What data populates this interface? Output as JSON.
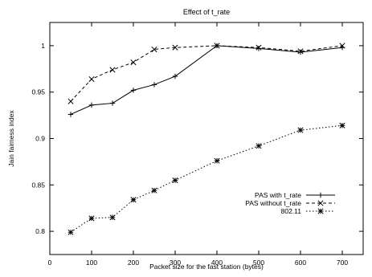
{
  "chart_data": {
    "type": "line",
    "title": "Effect of t_rate",
    "xlabel": "Packet size for the fast station (bytes)",
    "ylabel": "Jain fairness index",
    "xlim": [
      0,
      750
    ],
    "ylim": [
      0.775,
      1.025
    ],
    "xticks": [
      0,
      100,
      200,
      300,
      400,
      500,
      600,
      700
    ],
    "yticks": [
      0.8,
      0.85,
      0.9,
      0.95,
      1
    ],
    "xtick_labels": [
      "0",
      "100",
      "200",
      "300",
      "400",
      "500",
      "600",
      "700"
    ],
    "ytick_labels": [
      "0.8",
      "0.85",
      "0.9",
      "0.95",
      "1"
    ],
    "grid": false,
    "legend_position": "right",
    "x": [
      50,
      100,
      150,
      200,
      250,
      300,
      400,
      500,
      600,
      700
    ],
    "series": [
      {
        "name": "PAS with t_rate",
        "values": [
          0.926,
          0.936,
          0.938,
          0.952,
          0.958,
          0.967,
          1.0,
          0.997,
          0.993,
          0.998
        ],
        "line_style": "solid",
        "marker": "plus",
        "color": "#000000"
      },
      {
        "name": "PAS without t_rate",
        "values": [
          0.94,
          0.964,
          0.974,
          0.982,
          0.996,
          0.998,
          1.0,
          0.998,
          0.994,
          1.0
        ],
        "line_style": "dashed",
        "marker": "x",
        "color": "#000000"
      },
      {
        "name": "802.11",
        "values": [
          0.799,
          0.814,
          0.815,
          0.834,
          0.844,
          0.855,
          0.876,
          0.892,
          0.909,
          0.914
        ],
        "line_style": "dotted",
        "marker": "star",
        "color": "#000000"
      }
    ]
  }
}
